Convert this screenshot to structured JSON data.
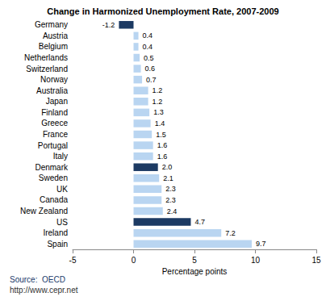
{
  "chart_data": {
    "type": "bar",
    "title": "Change in Harmonized Unemployment Rate, 2007-2009",
    "orientation": "horizontal",
    "categories": [
      "Germany",
      "Austria",
      "Belgium",
      "Netherlands",
      "Switzerland",
      "Norway",
      "Australia",
      "Japan",
      "Finland",
      "Greece",
      "France",
      "Portugal",
      "Italy",
      "Denmark",
      "Sweden",
      "UK",
      "Canada",
      "New Zealand",
      "US",
      "Ireland",
      "Spain"
    ],
    "values": [
      -1.2,
      0.4,
      0.4,
      0.5,
      0.6,
      0.7,
      1.2,
      1.2,
      1.3,
      1.4,
      1.5,
      1.6,
      1.6,
      2.0,
      2.1,
      2.3,
      2.3,
      2.4,
      4.7,
      7.2,
      9.7
    ],
    "value_labels": [
      "-1.2",
      "0.4",
      "0.4",
      "0.5",
      "0.6",
      "0.7",
      "1.2",
      "1.2",
      "1.3",
      "1.4",
      "1.5",
      "1.6",
      "1.6",
      "2.0",
      "2.1",
      "2.3",
      "2.3",
      "2.4",
      "4.7",
      "7.2",
      "9.7"
    ],
    "colors": [
      "#1c3a63",
      "#b9d5f1",
      "#b9d5f1",
      "#b9d5f1",
      "#b9d5f1",
      "#b9d5f1",
      "#b9d5f1",
      "#b9d5f1",
      "#b9d5f1",
      "#b9d5f1",
      "#b9d5f1",
      "#b9d5f1",
      "#b9d5f1",
      "#1c3a63",
      "#b9d5f1",
      "#b9d5f1",
      "#b9d5f1",
      "#b9d5f1",
      "#1c3a63",
      "#b9d5f1",
      "#b9d5f1"
    ],
    "x_label": "Percentage points",
    "xlim": [
      -5,
      15
    ],
    "xticks": [
      -5,
      0,
      5,
      10,
      15
    ],
    "grid": false,
    "data_labels": true,
    "annotations": [
      "Source:  OECD",
      "http://www.cepr.net"
    ]
  }
}
